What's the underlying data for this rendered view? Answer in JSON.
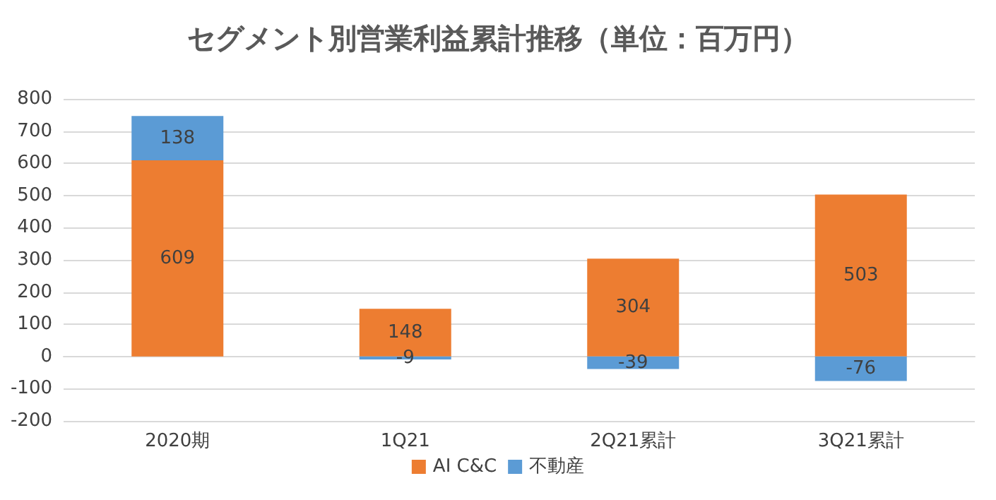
{
  "chart_data": {
    "type": "bar",
    "title": "セグメント別営業利益累計推移（単位：百万円）",
    "categories": [
      "2020期",
      "1Q21",
      "2Q21累計",
      "3Q21累計"
    ],
    "stacked": true,
    "series": [
      {
        "name": "AI C&C",
        "color": "#ed7d31",
        "values": [
          609,
          148,
          304,
          503
        ]
      },
      {
        "name": "不動産",
        "color": "#5b9bd5",
        "values": [
          138,
          -9,
          -39,
          -76
        ]
      }
    ],
    "ylim": [
      -200,
      800
    ],
    "yticks": [
      -200,
      -100,
      0,
      100,
      200,
      300,
      400,
      500,
      600,
      700,
      800
    ],
    "grid": "y",
    "legend": "bottom",
    "data_labels": true
  }
}
